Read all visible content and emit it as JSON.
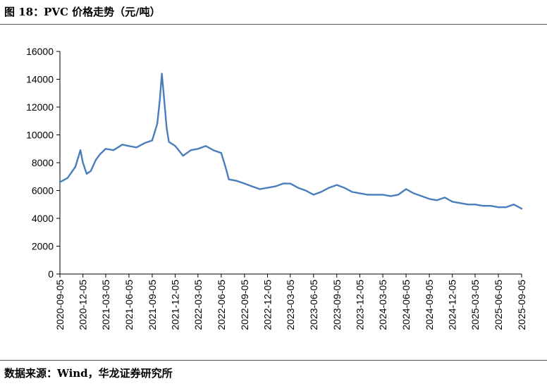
{
  "header": {
    "title": "图 18：PVC 价格走势（元/吨）"
  },
  "footer": {
    "source": "数据来源：Wind，华龙证券研究所"
  },
  "chart_data": {
    "type": "line",
    "title": "图 18：PVC 价格走势（元/吨）",
    "xlabel": "",
    "ylabel": "",
    "ylim": [
      0,
      16000
    ],
    "yticks": [
      0,
      2000,
      4000,
      6000,
      8000,
      10000,
      12000,
      14000,
      16000
    ],
    "xticks": [
      "2020-09-05",
      "2020-12-05",
      "2021-03-05",
      "2021-06-05",
      "2021-09-05",
      "2021-12-05",
      "2022-03-05",
      "2022-06-05",
      "2022-09-05",
      "2022-12-05",
      "2023-03-05",
      "2023-06-05",
      "2023-09-05",
      "2023-12-05",
      "2024-03-05",
      "2024-06-05",
      "2024-09-05",
      "2024-12-05",
      "2025-03-05",
      "2025-06-05",
      "2025-09-05"
    ],
    "grid": false,
    "legend": "none",
    "colors": {
      "line": "#4a7ebb"
    },
    "series": [
      {
        "x": [
          "2020-09-05",
          "2020-10-05",
          "2020-11-05",
          "2020-11-25",
          "2020-12-05",
          "2020-12-20",
          "2021-01-05",
          "2021-01-25",
          "2021-02-10",
          "2021-03-05",
          "2021-04-05",
          "2021-05-10",
          "2021-06-05",
          "2021-07-05",
          "2021-08-05",
          "2021-09-05",
          "2021-09-25",
          "2021-10-05",
          "2021-10-13",
          "2021-10-20",
          "2021-11-01",
          "2021-11-10",
          "2021-12-05",
          "2022-01-05",
          "2022-02-05",
          "2022-03-05",
          "2022-04-05",
          "2022-05-05",
          "2022-06-05",
          "2022-06-25",
          "2022-07-05",
          "2022-08-05",
          "2022-09-05",
          "2022-10-05",
          "2022-11-05",
          "2022-12-05",
          "2023-01-05",
          "2023-02-05",
          "2023-03-05",
          "2023-04-05",
          "2023-05-05",
          "2023-06-05",
          "2023-07-05",
          "2023-08-05",
          "2023-09-05",
          "2023-10-05",
          "2023-11-05",
          "2023-12-05",
          "2024-01-05",
          "2024-02-05",
          "2024-03-05",
          "2024-04-05",
          "2024-05-05",
          "2024-06-05",
          "2024-07-05",
          "2024-08-05",
          "2024-09-05",
          "2024-10-05",
          "2024-11-05",
          "2024-12-05",
          "2025-01-05",
          "2025-02-05",
          "2025-03-05",
          "2025-04-05",
          "2025-05-05",
          "2025-06-05",
          "2025-07-05",
          "2025-08-05",
          "2025-09-05"
        ],
        "y": [
          6600,
          6900,
          7700,
          8900,
          8000,
          7200,
          7400,
          8200,
          8600,
          9000,
          8900,
          9300,
          9200,
          9100,
          9400,
          9600,
          10800,
          12500,
          14400,
          13000,
          10500,
          9500,
          9200,
          8500,
          8900,
          9000,
          9200,
          8900,
          8700,
          7500,
          6800,
          6700,
          6500,
          6300,
          6100,
          6200,
          6300,
          6500,
          6500,
          6200,
          6000,
          5700,
          5900,
          6200,
          6400,
          6200,
          5900,
          5800,
          5700,
          5700,
          5700,
          5600,
          5700,
          6100,
          5800,
          5600,
          5400,
          5300,
          5500,
          5200,
          5100,
          5000,
          5000,
          4900,
          4900,
          4800,
          4800,
          5000,
          4700
        ]
      }
    ]
  }
}
